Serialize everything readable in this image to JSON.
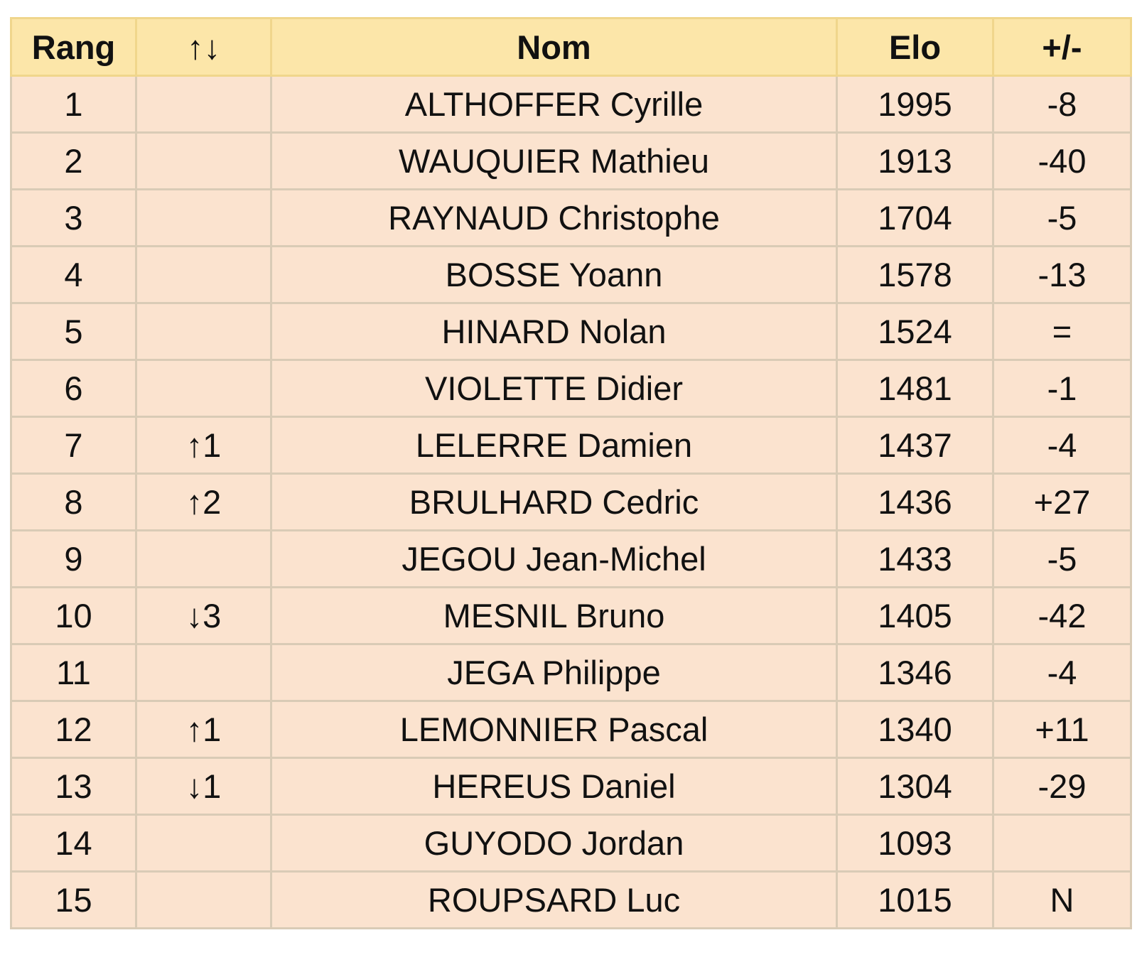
{
  "table": {
    "headers": {
      "rank": "Rang",
      "movement": "↑↓",
      "name": "Nom",
      "elo": "Elo",
      "diff": "+/-"
    },
    "rows": [
      {
        "rank": "1",
        "movement": "",
        "movement_dir": "",
        "name": "ALTHOFFER Cyrille",
        "elo": "1995",
        "diff": "-8",
        "diff_type": "neg"
      },
      {
        "rank": "2",
        "movement": "",
        "movement_dir": "",
        "name": "WAUQUIER Mathieu",
        "elo": "1913",
        "diff": "-40",
        "diff_type": "neg"
      },
      {
        "rank": "3",
        "movement": "",
        "movement_dir": "",
        "name": "RAYNAUD Christophe",
        "elo": "1704",
        "diff": "-5",
        "diff_type": "neg"
      },
      {
        "rank": "4",
        "movement": "",
        "movement_dir": "",
        "name": "BOSSE Yoann",
        "elo": "1578",
        "diff": "-13",
        "diff_type": "neg"
      },
      {
        "rank": "5",
        "movement": "",
        "movement_dir": "",
        "name": "HINARD Nolan",
        "elo": "1524",
        "diff": "=",
        "diff_type": "eq"
      },
      {
        "rank": "6",
        "movement": "",
        "movement_dir": "",
        "name": "VIOLETTE Didier",
        "elo": "1481",
        "diff": "-1",
        "diff_type": "neg"
      },
      {
        "rank": "7",
        "movement": "↑1",
        "movement_dir": "up",
        "name": "LELERRE Damien",
        "elo": "1437",
        "diff": "-4",
        "diff_type": "neg"
      },
      {
        "rank": "8",
        "movement": "↑2",
        "movement_dir": "up",
        "name": "BRULHARD Cedric",
        "elo": "1436",
        "diff": "+27",
        "diff_type": "pos"
      },
      {
        "rank": "9",
        "movement": "",
        "movement_dir": "",
        "name": "JEGOU Jean-Michel",
        "elo": "1433",
        "diff": "-5",
        "diff_type": "neg"
      },
      {
        "rank": "10",
        "movement": "↓3",
        "movement_dir": "down",
        "name": "MESNIL Bruno",
        "elo": "1405",
        "diff": "-42",
        "diff_type": "neg"
      },
      {
        "rank": "11",
        "movement": "",
        "movement_dir": "",
        "name": "JEGA Philippe",
        "elo": "1346",
        "diff": "-4",
        "diff_type": "neg"
      },
      {
        "rank": "12",
        "movement": "↑1",
        "movement_dir": "up",
        "name": "LEMONNIER Pascal",
        "elo": "1340",
        "diff": "+11",
        "diff_type": "pos"
      },
      {
        "rank": "13",
        "movement": "↓1",
        "movement_dir": "down",
        "name": "HEREUS Daniel",
        "elo": "1304",
        "diff": "-29",
        "diff_type": "neg"
      },
      {
        "rank": "14",
        "movement": "",
        "movement_dir": "",
        "name": "GUYODO Jordan",
        "elo": "1093",
        "diff": "",
        "diff_type": ""
      },
      {
        "rank": "15",
        "movement": "",
        "movement_dir": "",
        "name": "ROUPSARD Luc",
        "elo": "1015",
        "diff": "N",
        "diff_type": "new"
      }
    ]
  },
  "colors": {
    "header_background": "#fce6a9",
    "row_background": "#fbe3cf",
    "border": "#d9cbb6",
    "up_green": "#3c8a2e",
    "down_red": "#d42a1f"
  }
}
